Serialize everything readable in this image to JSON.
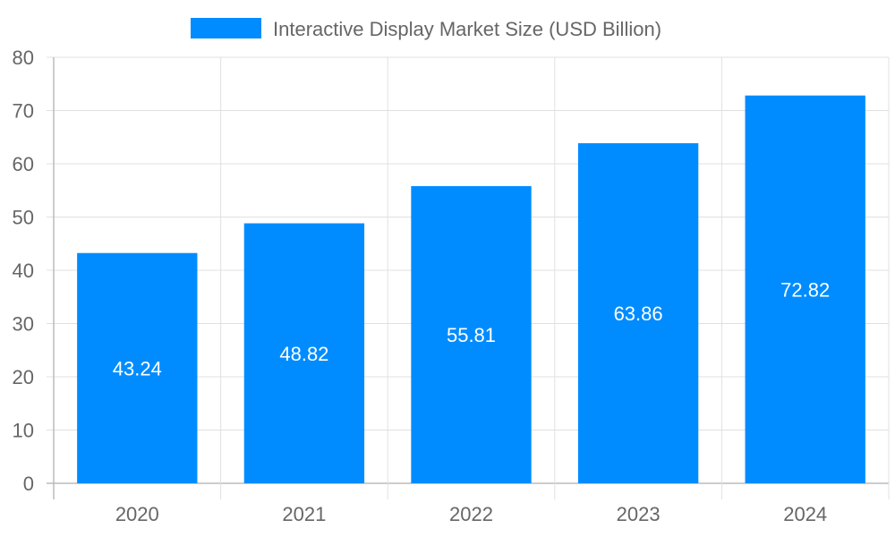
{
  "chart_data": {
    "type": "bar",
    "title": "",
    "legend": {
      "label": "Interactive Display Market Size (USD Billion)",
      "placement": "top"
    },
    "categories": [
      "2020",
      "2021",
      "2022",
      "2023",
      "2024"
    ],
    "series": [
      {
        "name": "Interactive Display Market Size (USD Billion)",
        "values": [
          43.24,
          48.82,
          55.81,
          63.86,
          72.82
        ],
        "color": "#008CFF"
      }
    ],
    "data_labels": [
      "43.24",
      "48.82",
      "55.81",
      "63.86",
      "72.82"
    ],
    "ylim": [
      0,
      80
    ],
    "yticks": [
      "0",
      "10",
      "20",
      "30",
      "40",
      "50",
      "60",
      "70",
      "80"
    ],
    "grid": true,
    "xlabel": "",
    "ylabel": ""
  }
}
